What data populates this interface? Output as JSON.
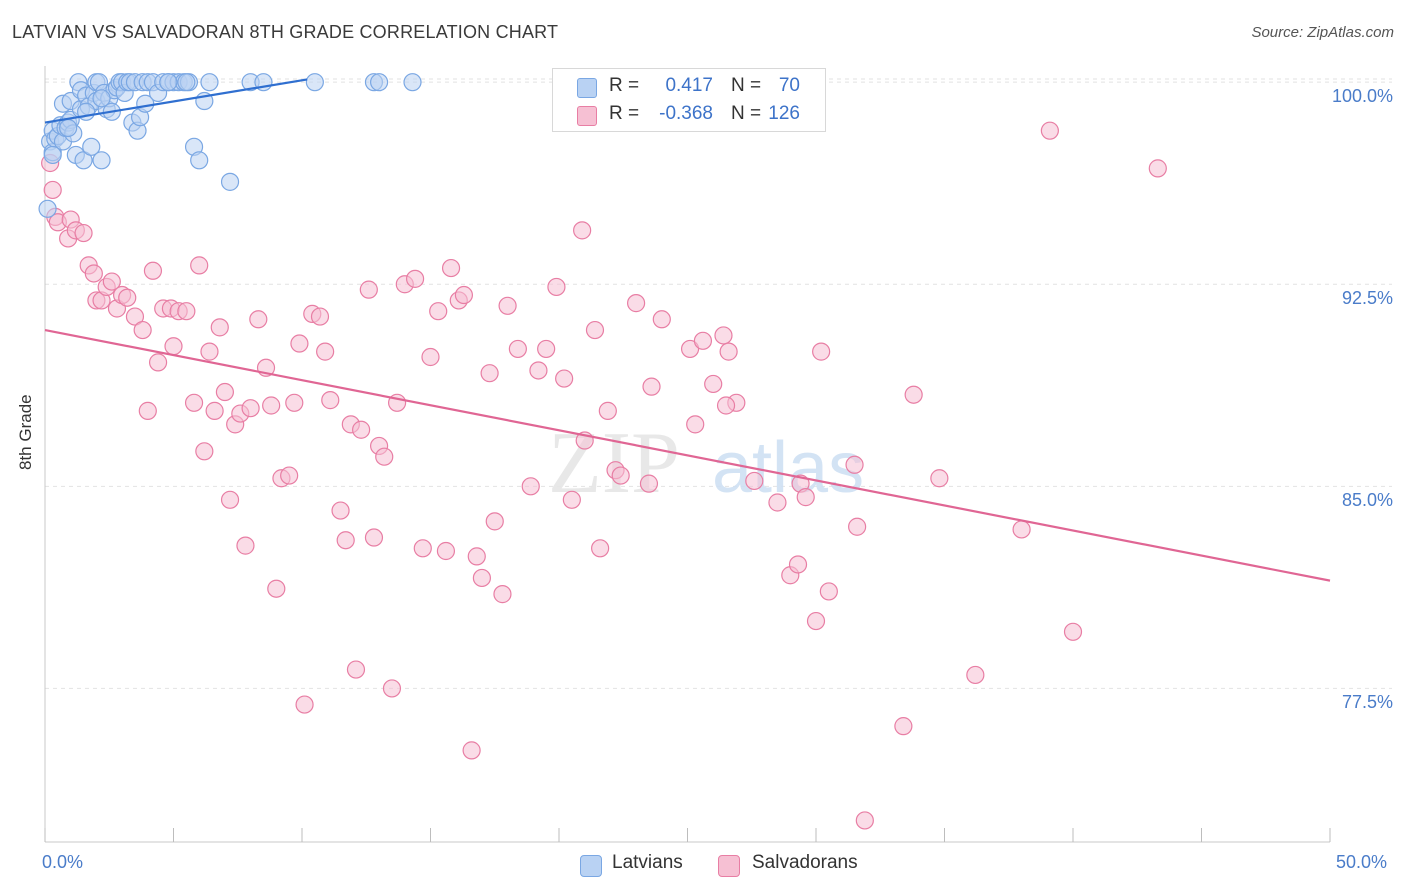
{
  "header": {
    "title": "LATVIAN VS SALVADORAN 8TH GRADE CORRELATION CHART",
    "source": "Source: ZipAtlas.com"
  },
  "legend": {
    "rows": [
      {
        "r_label": "R =",
        "r_value": "0.417",
        "n_label": "N =",
        "n_value": "70",
        "color": "#7aa7e3",
        "fill": "#b9d2f3"
      },
      {
        "r_label": "R =",
        "r_value": "-0.368",
        "n_label": "N =",
        "n_value": "126",
        "color": "#e87ea4",
        "fill": "#f6c0d3"
      }
    ],
    "bottom": [
      {
        "label": "Latvians",
        "color": "#7aa7e3",
        "fill": "#b9d2f3"
      },
      {
        "label": "Salvadorans",
        "color": "#e87ea4",
        "fill": "#f6c0d3"
      }
    ]
  },
  "watermark": {
    "zip": "ZIP",
    "atlas": "atlas"
  },
  "chart_data": {
    "type": "scatter",
    "title": "LATVIAN VS SALVADORAN 8TH GRADE CORRELATION CHART",
    "xlabel": "",
    "ylabel": "8th Grade",
    "xlim": [
      0,
      50
    ],
    "ylim": [
      71.8,
      100.6
    ],
    "x_tick_labels": [
      "0.0%",
      "50.0%"
    ],
    "y_ticks": [
      77.5,
      85.0,
      92.5,
      100.0
    ],
    "y_tick_labels": [
      "77.5%",
      "85.0%",
      "92.5%",
      "100.0%"
    ],
    "grid": true,
    "series": [
      {
        "name": "Latvians",
        "color": "#3d73c9",
        "points": [
          [
            0.1,
            95.3
          ],
          [
            0.2,
            97.8
          ],
          [
            0.3,
            98.2
          ],
          [
            0.3,
            97.4
          ],
          [
            0.4,
            97.9
          ],
          [
            0.5,
            98.0
          ],
          [
            0.6,
            98.4
          ],
          [
            0.7,
            99.2
          ],
          [
            0.7,
            97.8
          ],
          [
            0.8,
            98.3
          ],
          [
            0.9,
            98.5
          ],
          [
            1.0,
            98.6
          ],
          [
            1.0,
            99.3
          ],
          [
            1.1,
            98.1
          ],
          [
            1.2,
            97.3
          ],
          [
            1.3,
            100.0
          ],
          [
            1.4,
            99.0
          ],
          [
            1.4,
            99.7
          ],
          [
            1.5,
            97.1
          ],
          [
            1.6,
            99.5
          ],
          [
            1.7,
            99.1
          ],
          [
            1.8,
            97.6
          ],
          [
            1.9,
            99.6
          ],
          [
            2.0,
            100.0
          ],
          [
            2.0,
            99.3
          ],
          [
            2.1,
            100.0
          ],
          [
            2.2,
            97.1
          ],
          [
            2.3,
            99.6
          ],
          [
            2.4,
            99.0
          ],
          [
            2.5,
            99.4
          ],
          [
            2.6,
            98.9
          ],
          [
            2.7,
            99.7
          ],
          [
            2.8,
            99.8
          ],
          [
            2.9,
            100.0
          ],
          [
            3.0,
            100.0
          ],
          [
            3.1,
            99.6
          ],
          [
            3.2,
            100.0
          ],
          [
            3.3,
            100.0
          ],
          [
            3.4,
            98.5
          ],
          [
            3.5,
            100.0
          ],
          [
            3.6,
            98.2
          ],
          [
            3.7,
            98.7
          ],
          [
            3.8,
            100.0
          ],
          [
            3.9,
            99.2
          ],
          [
            4.0,
            100.0
          ],
          [
            4.2,
            100.0
          ],
          [
            4.4,
            99.6
          ],
          [
            4.6,
            100.0
          ],
          [
            4.8,
            100.0
          ],
          [
            5.0,
            100.0
          ],
          [
            5.2,
            100.0
          ],
          [
            5.4,
            100.0
          ],
          [
            5.6,
            100.0
          ],
          [
            5.8,
            97.6
          ],
          [
            6.0,
            97.1
          ],
          [
            6.2,
            99.3
          ],
          [
            6.4,
            100.0
          ],
          [
            7.2,
            96.3
          ],
          [
            8.0,
            100.0
          ],
          [
            8.5,
            100.0
          ],
          [
            10.5,
            100.0
          ],
          [
            12.8,
            100.0
          ],
          [
            13.0,
            100.0
          ],
          [
            14.3,
            100.0
          ],
          [
            0.3,
            97.3
          ],
          [
            0.9,
            98.3
          ],
          [
            1.6,
            98.9
          ],
          [
            2.2,
            99.4
          ],
          [
            4.8,
            100.0
          ],
          [
            5.5,
            100.0
          ]
        ]
      },
      {
        "name": "Salvadorans",
        "color": "#e06694",
        "points": [
          [
            0.2,
            97.0
          ],
          [
            0.3,
            96.0
          ],
          [
            0.4,
            95.0
          ],
          [
            0.5,
            94.8
          ],
          [
            0.9,
            94.2
          ],
          [
            1.0,
            94.9
          ],
          [
            1.2,
            94.5
          ],
          [
            1.5,
            94.4
          ],
          [
            1.7,
            93.2
          ],
          [
            1.9,
            92.9
          ],
          [
            2.0,
            91.9
          ],
          [
            2.2,
            91.9
          ],
          [
            2.4,
            92.4
          ],
          [
            2.6,
            92.6
          ],
          [
            2.8,
            91.6
          ],
          [
            3.0,
            92.1
          ],
          [
            3.2,
            92.0
          ],
          [
            3.5,
            91.3
          ],
          [
            3.8,
            90.8
          ],
          [
            4.0,
            87.8
          ],
          [
            4.2,
            93.0
          ],
          [
            4.4,
            89.6
          ],
          [
            4.6,
            91.6
          ],
          [
            4.9,
            91.6
          ],
          [
            5.0,
            90.2
          ],
          [
            5.2,
            91.5
          ],
          [
            5.5,
            91.5
          ],
          [
            5.8,
            88.1
          ],
          [
            6.0,
            93.2
          ],
          [
            6.2,
            86.3
          ],
          [
            6.4,
            90.0
          ],
          [
            6.6,
            87.8
          ],
          [
            6.8,
            90.9
          ],
          [
            7.0,
            88.5
          ],
          [
            7.2,
            84.5
          ],
          [
            7.4,
            87.3
          ],
          [
            7.6,
            87.7
          ],
          [
            7.8,
            82.8
          ],
          [
            8.0,
            87.9
          ],
          [
            8.3,
            91.2
          ],
          [
            8.6,
            89.4
          ],
          [
            8.8,
            88.0
          ],
          [
            9.0,
            81.2
          ],
          [
            9.2,
            85.3
          ],
          [
            9.5,
            85.4
          ],
          [
            9.7,
            88.1
          ],
          [
            9.9,
            90.3
          ],
          [
            10.1,
            76.9
          ],
          [
            10.4,
            91.4
          ],
          [
            10.7,
            91.3
          ],
          [
            10.9,
            90.0
          ],
          [
            11.1,
            88.2
          ],
          [
            11.5,
            84.1
          ],
          [
            11.7,
            83.0
          ],
          [
            11.9,
            87.3
          ],
          [
            12.1,
            78.2
          ],
          [
            12.3,
            87.1
          ],
          [
            12.6,
            92.3
          ],
          [
            12.8,
            83.1
          ],
          [
            13.0,
            86.5
          ],
          [
            13.2,
            86.1
          ],
          [
            13.5,
            77.5
          ],
          [
            13.7,
            88.1
          ],
          [
            14.0,
            92.5
          ],
          [
            14.4,
            92.7
          ],
          [
            14.7,
            82.7
          ],
          [
            15.0,
            89.8
          ],
          [
            15.3,
            91.5
          ],
          [
            15.6,
            82.6
          ],
          [
            15.8,
            93.1
          ],
          [
            16.1,
            91.9
          ],
          [
            16.3,
            92.1
          ],
          [
            16.6,
            75.2
          ],
          [
            16.8,
            82.4
          ],
          [
            17.0,
            81.6
          ],
          [
            17.3,
            89.2
          ],
          [
            17.5,
            83.7
          ],
          [
            17.8,
            81.0
          ],
          [
            18.0,
            91.7
          ],
          [
            18.4,
            90.1
          ],
          [
            18.9,
            85.0
          ],
          [
            19.2,
            89.3
          ],
          [
            19.5,
            90.1
          ],
          [
            19.9,
            92.4
          ],
          [
            20.2,
            89.0
          ],
          [
            20.5,
            84.5
          ],
          [
            20.9,
            94.5
          ],
          [
            21.0,
            86.7
          ],
          [
            21.4,
            90.8
          ],
          [
            21.6,
            82.7
          ],
          [
            21.9,
            87.8
          ],
          [
            22.2,
            85.6
          ],
          [
            22.4,
            85.4
          ],
          [
            23.0,
            91.8
          ],
          [
            23.5,
            85.1
          ],
          [
            23.6,
            88.7
          ],
          [
            24.0,
            91.2
          ],
          [
            25.1,
            90.1
          ],
          [
            25.3,
            87.3
          ],
          [
            25.6,
            90.4
          ],
          [
            26.0,
            88.8
          ],
          [
            26.4,
            90.6
          ],
          [
            26.6,
            90.0
          ],
          [
            26.9,
            88.1
          ],
          [
            27.0,
            100.0
          ],
          [
            27.6,
            85.2
          ],
          [
            28.5,
            84.4
          ],
          [
            29.0,
            81.7
          ],
          [
            29.3,
            82.1
          ],
          [
            29.4,
            85.1
          ],
          [
            29.6,
            84.6
          ],
          [
            30.0,
            80.0
          ],
          [
            30.2,
            90.0
          ],
          [
            30.5,
            81.1
          ],
          [
            31.6,
            83.5
          ],
          [
            31.5,
            85.8
          ],
          [
            31.9,
            72.6
          ],
          [
            33.4,
            76.1
          ],
          [
            33.8,
            88.4
          ],
          [
            34.8,
            85.3
          ],
          [
            36.2,
            78.0
          ],
          [
            38.0,
            83.4
          ],
          [
            39.1,
            98.2
          ],
          [
            40.0,
            79.6
          ],
          [
            43.3,
            96.8
          ],
          [
            26.5,
            88.0
          ]
        ]
      }
    ],
    "trend_lines": [
      {
        "series": "Latvians",
        "x": [
          0.0,
          10.2
        ],
        "y": [
          98.5,
          100.1
        ]
      },
      {
        "series": "Salvadorans",
        "x": [
          0.0,
          50.0
        ],
        "y": [
          90.8,
          81.5
        ]
      }
    ]
  }
}
